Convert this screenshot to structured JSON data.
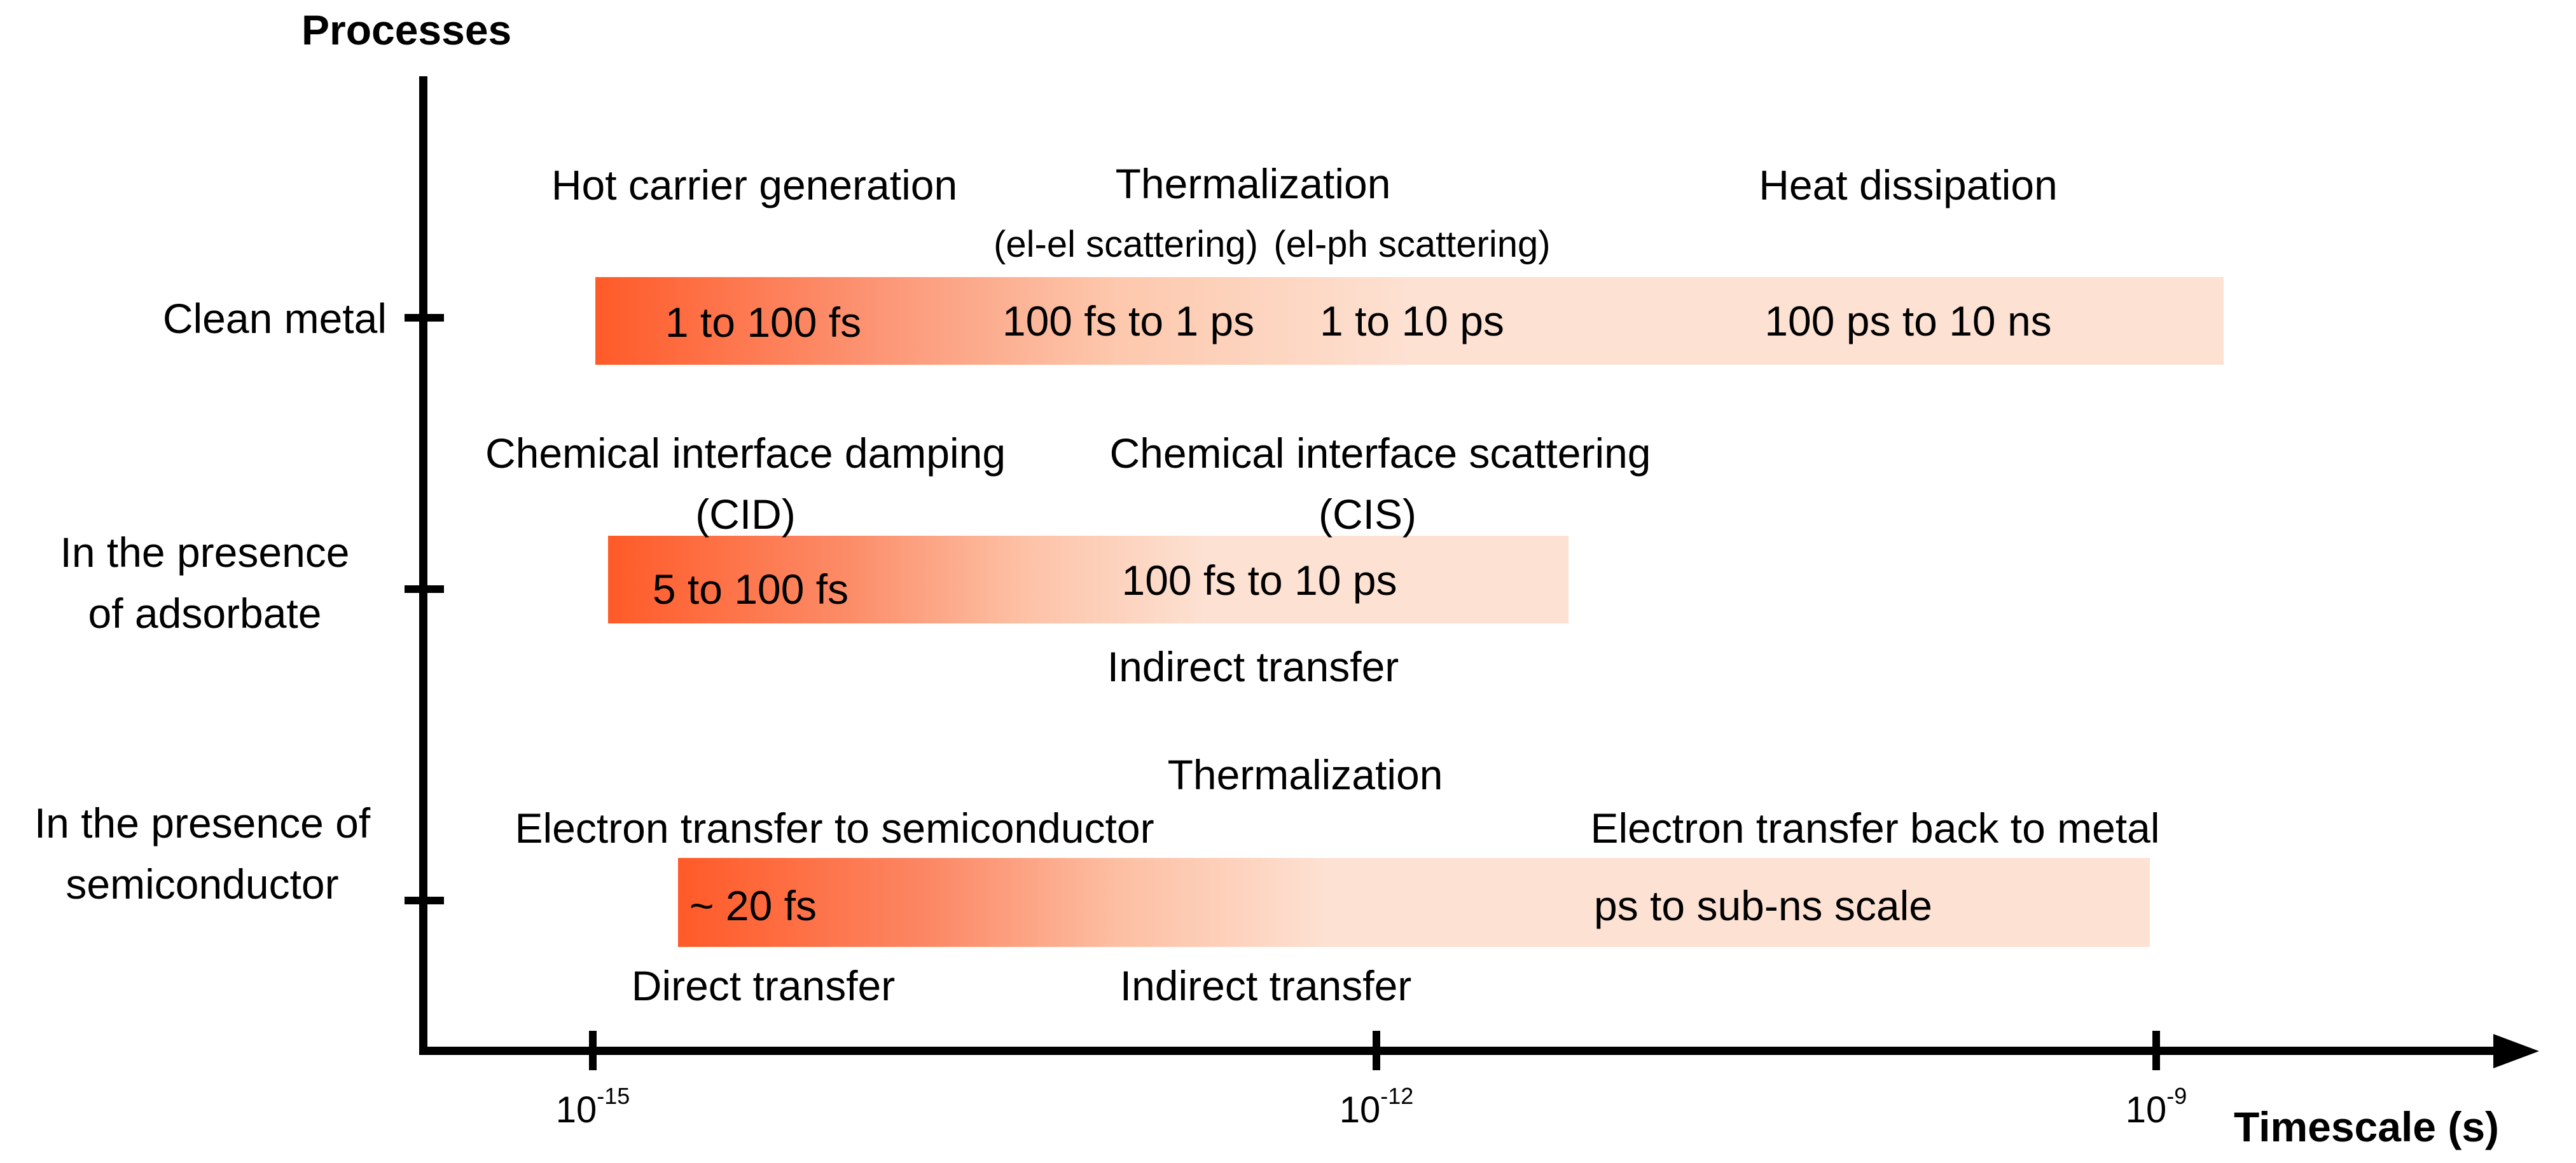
{
  "axis": {
    "y_title": "Processes",
    "x_title": "Timescale (s)",
    "x_ticks": [
      {
        "base": "10",
        "exp": "-15"
      },
      {
        "base": "10",
        "exp": "-12"
      },
      {
        "base": "10",
        "exp": "-9"
      }
    ]
  },
  "rows": {
    "clean": {
      "label_line1": "Clean metal",
      "hot_carrier": "Hot carrier generation",
      "thermalization": "Thermalization",
      "el_el": "(el-el scattering)",
      "el_ph": "(el-ph scattering)",
      "heat": "Heat dissipation",
      "t1": "1 to 100 fs",
      "t2": "100 fs to 1 ps",
      "t3": "1 to 10 ps",
      "t4": "100 ps to 10 ns"
    },
    "adsorbate": {
      "label_line1": "In the presence",
      "label_line2": "of adsorbate",
      "cid_line1": "Chemical interface damping",
      "cid_line2": "(CID)",
      "cis_line1": "Chemical interface scattering",
      "cis_line2": "(CIS)",
      "t1": "5 to 100 fs",
      "t2": "100 fs to 10 ps",
      "below": "Indirect transfer"
    },
    "semiconductor": {
      "label_line1": "In the presence of",
      "label_line2": "semiconductor",
      "thermalization": "Thermalization",
      "et_semi": "Electron transfer to semiconductor",
      "et_back": "Electron transfer back to metal",
      "t1": "~ 20 fs",
      "t2": "ps to sub-ns scale",
      "below1": "Direct transfer",
      "below2": "Indirect transfer"
    }
  },
  "colors": {
    "dark": "#ff5a28",
    "mid": "#fc9474",
    "light": "#fde1d2"
  }
}
